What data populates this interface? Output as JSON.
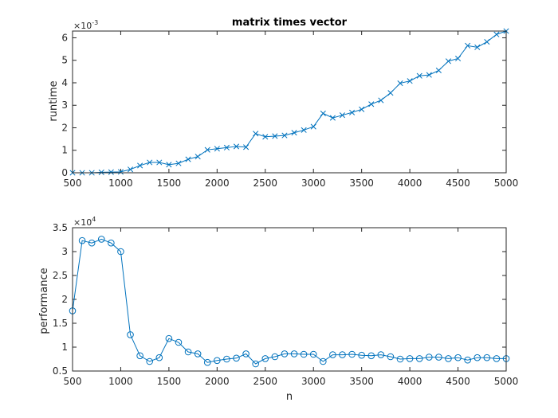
{
  "colors": {
    "series": "#0072BD",
    "axis": "#262626"
  },
  "chart_data": [
    {
      "type": "line",
      "title": "matrix times vector",
      "xlabel": "",
      "ylabel": "runtime",
      "exponent_label": "×10",
      "exponent_power": "-3",
      "marker": "x",
      "xlim": [
        500,
        5000
      ],
      "ylim": [
        0,
        6.3
      ],
      "xticks": [
        500,
        1000,
        1500,
        2000,
        2500,
        3000,
        3500,
        4000,
        4500,
        5000
      ],
      "yticks": [
        0,
        1,
        2,
        3,
        4,
        5,
        6
      ],
      "x": [
        500,
        600,
        700,
        800,
        900,
        1000,
        1100,
        1200,
        1300,
        1400,
        1500,
        1600,
        1700,
        1800,
        1900,
        2000,
        2100,
        2200,
        2300,
        2400,
        2500,
        2600,
        2700,
        2800,
        2900,
        3000,
        3100,
        3200,
        3300,
        3400,
        3500,
        3600,
        3700,
        3800,
        3900,
        4000,
        4100,
        4200,
        4300,
        4400,
        4500,
        4600,
        4700,
        4800,
        4900,
        5000
      ],
      "series": [
        {
          "values": [
            0.0,
            0.0,
            0.0,
            0.02,
            0.03,
            0.04,
            0.15,
            0.32,
            0.46,
            0.46,
            0.36,
            0.42,
            0.6,
            0.72,
            1.02,
            1.07,
            1.12,
            1.17,
            1.14,
            1.74,
            1.6,
            1.63,
            1.66,
            1.78,
            1.9,
            2.05,
            2.64,
            2.44,
            2.56,
            2.68,
            2.82,
            3.05,
            3.22,
            3.55,
            3.98,
            4.08,
            4.31,
            4.35,
            4.55,
            4.96,
            5.08,
            5.65,
            5.58,
            5.82,
            6.15,
            6.3
          ]
        }
      ]
    },
    {
      "type": "line",
      "title": "",
      "xlabel": "n",
      "ylabel": "performance",
      "exponent_label": "×10",
      "exponent_power": "4",
      "marker": "o",
      "xlim": [
        500,
        5000
      ],
      "ylim": [
        0.5,
        3.5
      ],
      "xticks": [
        500,
        1000,
        1500,
        2000,
        2500,
        3000,
        3500,
        4000,
        4500,
        5000
      ],
      "yticks": [
        0.5,
        1,
        1.5,
        2,
        2.5,
        3,
        3.5
      ],
      "x": [
        500,
        600,
        700,
        800,
        900,
        1000,
        1100,
        1200,
        1300,
        1400,
        1500,
        1600,
        1700,
        1800,
        1900,
        2000,
        2100,
        2200,
        2300,
        2400,
        2500,
        2600,
        2700,
        2800,
        2900,
        3000,
        3100,
        3200,
        3300,
        3400,
        3500,
        3600,
        3700,
        3800,
        3900,
        4000,
        4100,
        4200,
        4300,
        4400,
        4500,
        4600,
        4700,
        4800,
        4900,
        5000
      ],
      "series": [
        {
          "values": [
            1.76,
            3.23,
            3.18,
            3.26,
            3.18,
            3.0,
            1.26,
            0.82,
            0.7,
            0.78,
            1.18,
            1.1,
            0.9,
            0.86,
            0.68,
            0.72,
            0.75,
            0.77,
            0.86,
            0.65,
            0.76,
            0.8,
            0.86,
            0.86,
            0.85,
            0.85,
            0.7,
            0.84,
            0.84,
            0.85,
            0.83,
            0.82,
            0.84,
            0.8,
            0.75,
            0.76,
            0.76,
            0.79,
            0.79,
            0.76,
            0.78,
            0.73,
            0.78,
            0.78,
            0.76,
            0.76
          ]
        }
      ]
    }
  ]
}
